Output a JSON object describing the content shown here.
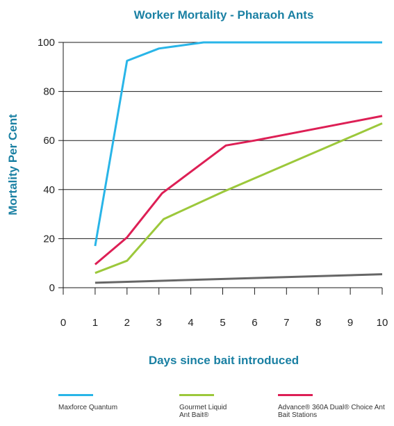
{
  "chart_data": {
    "type": "line",
    "title": "Worker Mortality - Pharaoh Ants",
    "xlabel": "Days since bait introduced",
    "ylabel": "Mortality Per Cent",
    "xlim": [
      0,
      10
    ],
    "ylim": [
      0,
      100
    ],
    "xticks": [
      "0",
      "1",
      "2",
      "3",
      "4",
      "5",
      "6",
      "7",
      "8",
      "9",
      "10"
    ],
    "yticks": [
      "0",
      "20",
      "40",
      "60",
      "80",
      "100"
    ],
    "grid": "horizontal",
    "legend_position": "bottom",
    "title_color": "#1a80a3",
    "series": [
      {
        "name": "Maxforce Quantum",
        "color": "#29b5e8",
        "x": [
          1,
          2,
          3,
          4.4,
          5,
          10
        ],
        "y": [
          17,
          92.5,
          97.5,
          100,
          100,
          100
        ]
      },
      {
        "name": "Gourmet Liquid Ant Bait®",
        "color": "#9cc83b",
        "x": [
          1,
          2,
          3.15,
          5,
          10
        ],
        "y": [
          6,
          11,
          28,
          39,
          67
        ]
      },
      {
        "name": "Advance® 360A Dual® Choice Ant Bait Stations",
        "color": "#dd1f55",
        "x": [
          1,
          2,
          3.1,
          5.1,
          6,
          10
        ],
        "y": [
          9.5,
          20.5,
          38.5,
          58,
          60,
          70
        ]
      },
      {
        "color": "#666666",
        "x": [
          1,
          10
        ],
        "y": [
          2,
          5.5
        ]
      }
    ]
  },
  "legend": [
    {
      "label": "Maxforce Quantum",
      "color": "#29b5e8"
    },
    {
      "label": "Gourmet Liquid Ant Bait®",
      "color": "#9cc83b"
    },
    {
      "label": "Advance® 360A Dual® Choice Ant Bait Stations",
      "color": "#dd1f55"
    }
  ]
}
